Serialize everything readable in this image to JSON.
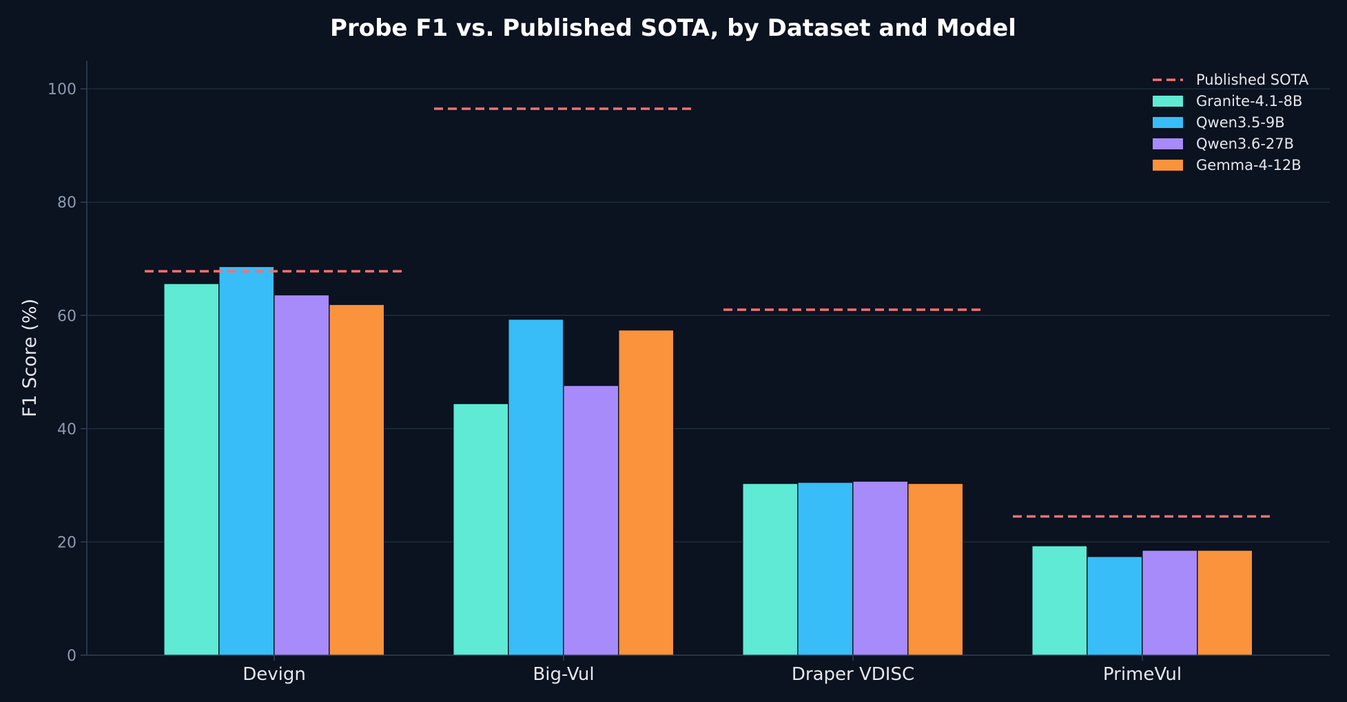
{
  "chart_data": {
    "type": "bar",
    "title": "Probe F1 vs. Published SOTA, by Dataset and Model",
    "xlabel": "",
    "ylabel": "F1 Score (%)",
    "ylim": [
      0,
      105
    ],
    "yticks": [
      0,
      20,
      40,
      60,
      80,
      100
    ],
    "grid": true,
    "legend_position": "top-right",
    "categories": [
      "Devign",
      "Big-Vul",
      "Draper VDISC",
      "PrimeVul"
    ],
    "series": [
      {
        "name": "Granite-4.1-8B",
        "color": "#5eead4",
        "values": [
          65.6,
          44.4,
          30.3,
          19.3
        ]
      },
      {
        "name": "Qwen3.5-9B",
        "color": "#38bdf8",
        "values": [
          68.6,
          59.3,
          30.5,
          17.4
        ]
      },
      {
        "name": "Qwen3.6-27B",
        "color": "#a78bfa",
        "values": [
          63.6,
          47.6,
          30.7,
          18.5
        ]
      },
      {
        "name": "Gemma-4-12B",
        "color": "#fb923c",
        "values": [
          61.9,
          57.4,
          30.3,
          18.5
        ]
      }
    ],
    "reference": {
      "name": "Published SOTA",
      "color": "#f87171",
      "values": [
        67.8,
        96.5,
        61.0,
        24.5
      ]
    }
  }
}
